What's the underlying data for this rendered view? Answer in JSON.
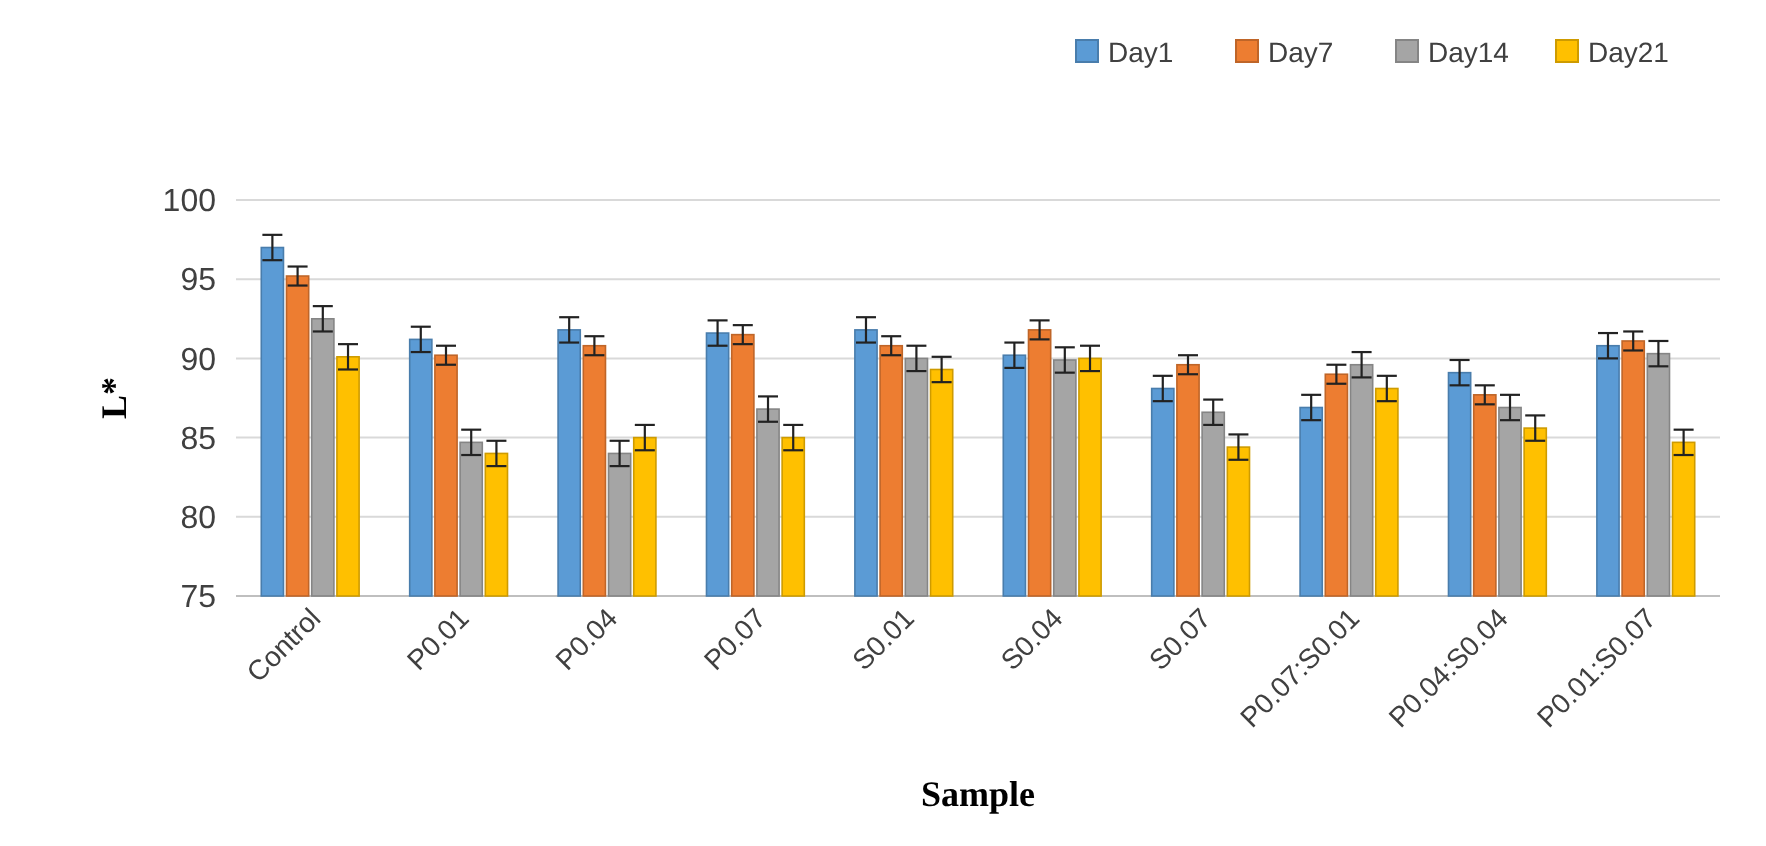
{
  "chart_data": {
    "type": "bar",
    "xlabel": "Sample",
    "ylabel": "L*",
    "categories": [
      "Control",
      "P0.01",
      "P0.04",
      "P0.07",
      "S0.01",
      "S0.04",
      "S0.07",
      "P0.07:S0.01",
      "P0.04:S0.04",
      "P0.01:S0.07"
    ],
    "series": [
      {
        "name": "Day1",
        "color": "#5b9bd5",
        "values": [
          97,
          91.2,
          91.8,
          91.6,
          91.8,
          90.2,
          88.1,
          86.9,
          89.1,
          90.8
        ],
        "errors": [
          0.8,
          0.8,
          0.8,
          0.8,
          0.8,
          0.8,
          0.8,
          0.8,
          0.8,
          0.8
        ]
      },
      {
        "name": "Day7",
        "color": "#ed7d31",
        "values": [
          95.2,
          90.2,
          90.8,
          91.5,
          90.8,
          91.8,
          89.6,
          89,
          87.7,
          91.1
        ],
        "errors": [
          0.6,
          0.6,
          0.6,
          0.6,
          0.6,
          0.6,
          0.6,
          0.6,
          0.6,
          0.6
        ]
      },
      {
        "name": "Day14",
        "color": "#a5a5a5",
        "values": [
          92.5,
          84.7,
          84,
          86.8,
          90,
          89.9,
          86.6,
          89.6,
          86.9,
          90.3
        ],
        "errors": [
          0.8,
          0.8,
          0.8,
          0.8,
          0.8,
          0.8,
          0.8,
          0.8,
          0.8,
          0.8
        ]
      },
      {
        "name": "Day21",
        "color": "#ffc000",
        "values": [
          90.1,
          84,
          85,
          85,
          89.3,
          90,
          84.4,
          88.1,
          85.6,
          84.7
        ],
        "errors": [
          0.8,
          0.8,
          0.8,
          0.8,
          0.8,
          0.8,
          0.8,
          0.8,
          0.8,
          0.8
        ]
      }
    ],
    "ylim": [
      75,
      100
    ],
    "yticks": [
      75,
      80,
      85,
      90,
      95,
      100
    ],
    "grid": "y",
    "legend": "top right"
  }
}
